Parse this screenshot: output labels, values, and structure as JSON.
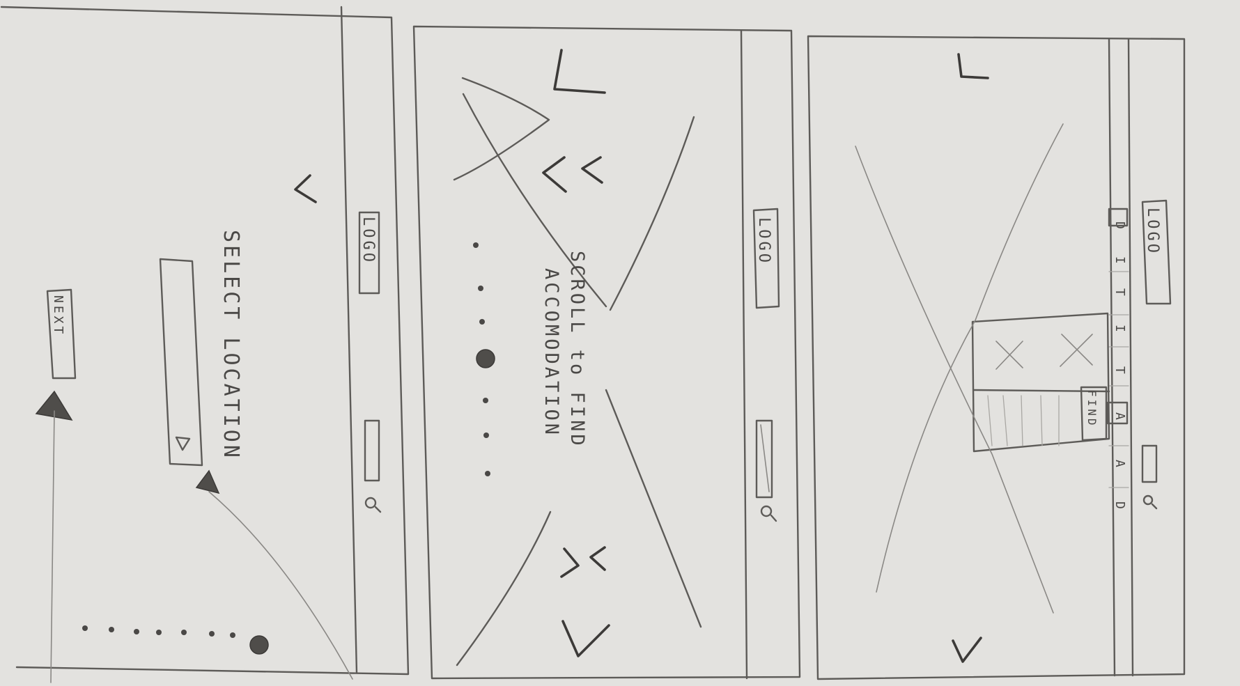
{
  "sketch_1": {
    "logo": "LOGO",
    "title": "SELECT LOCATION",
    "next_button": "NEXT",
    "search_icon": "magnifier-icon"
  },
  "sketch_2": {
    "logo": "LOGO",
    "instruction_line_1": "SCROLL to FIND",
    "instruction_line_2": "ACCOMODATION",
    "search_icon": "magnifier-icon"
  },
  "sketch_3": {
    "logo": "LOGO",
    "nav_letters": [
      "D",
      "I",
      "T",
      "I",
      "T",
      "A",
      "A",
      "D"
    ],
    "find_button": "FIND",
    "search_icon": "magnifier-icon"
  }
}
